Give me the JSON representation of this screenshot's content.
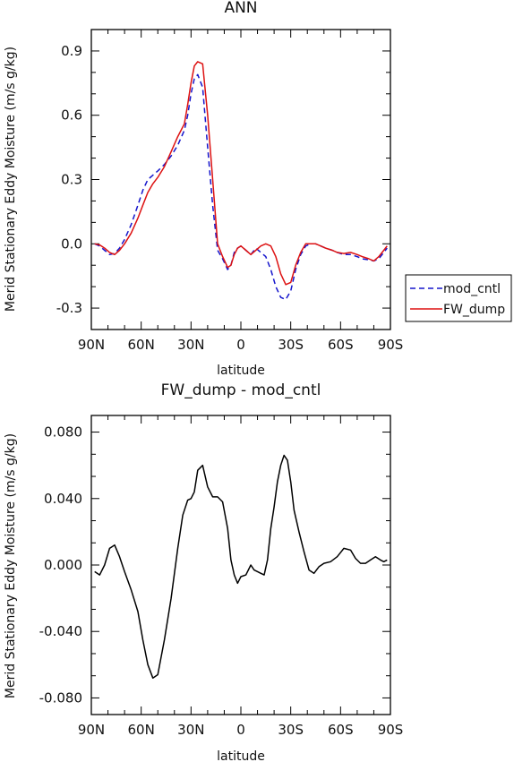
{
  "chart_data": [
    {
      "type": "line",
      "title": "ANN",
      "xlabel": "latitude",
      "ylabel": "Merid Stationary Eddy Moisture (m/s g/kg)",
      "xlim": [
        90,
        -90
      ],
      "ylim": [
        -0.4,
        1.0
      ],
      "xticks": [
        90,
        60,
        30,
        0,
        -30,
        -60,
        -90
      ],
      "xtick_labels": [
        "90N",
        "60N",
        "30N",
        "0",
        "30S",
        "60S",
        "90S"
      ],
      "yticks": [
        -0.3,
        0.0,
        0.3,
        0.6,
        0.9
      ],
      "ytick_labels": [
        "-0.3",
        "0.0",
        "0.3",
        "0.6",
        "0.9"
      ],
      "legend_position": "outside-right",
      "series": [
        {
          "name": "mod_cntl",
          "color": "#1515cc",
          "dash": "dashed",
          "x": [
            88,
            85,
            82,
            79,
            76,
            73,
            70,
            66,
            62,
            59,
            56,
            53,
            50,
            46,
            42,
            38,
            34,
            32,
            30,
            28,
            26,
            23,
            20,
            17,
            14,
            11,
            8,
            6,
            4,
            2,
            0,
            -3,
            -6,
            -9,
            -12,
            -15,
            -18,
            -21,
            -24,
            -27,
            -30,
            -33,
            -36,
            -39,
            -42,
            -45,
            -48,
            -51,
            -55,
            -58,
            -62,
            -66,
            -70,
            -73,
            -77,
            -80,
            -83,
            -86,
            -88
          ],
          "y": [
            0.0,
            -0.01,
            -0.03,
            -0.05,
            -0.045,
            -0.02,
            0.02,
            0.09,
            0.18,
            0.25,
            0.3,
            0.32,
            0.34,
            0.37,
            0.41,
            0.46,
            0.53,
            0.6,
            0.7,
            0.77,
            0.79,
            0.73,
            0.45,
            0.18,
            -0.03,
            -0.07,
            -0.12,
            -0.1,
            -0.04,
            -0.02,
            -0.01,
            -0.03,
            -0.05,
            -0.02,
            -0.04,
            -0.06,
            -0.12,
            -0.2,
            -0.25,
            -0.26,
            -0.22,
            -0.12,
            -0.05,
            -0.01,
            0.0,
            0.0,
            -0.01,
            -0.02,
            -0.03,
            -0.04,
            -0.05,
            -0.05,
            -0.06,
            -0.07,
            -0.075,
            -0.08,
            -0.07,
            -0.04,
            -0.02
          ]
        },
        {
          "name": "FW_dump",
          "color": "#dd1111",
          "dash": "solid",
          "x": [
            88,
            85,
            82,
            79,
            76,
            73,
            70,
            66,
            62,
            59,
            56,
            53,
            50,
            46,
            42,
            38,
            34,
            32,
            30,
            28,
            26,
            23,
            20,
            17,
            14,
            11,
            8,
            6,
            4,
            2,
            0,
            -3,
            -6,
            -9,
            -12,
            -15,
            -18,
            -21,
            -24,
            -27,
            -30,
            -33,
            -36,
            -39,
            -42,
            -45,
            -48,
            -51,
            -55,
            -58,
            -62,
            -66,
            -70,
            -73,
            -77,
            -80,
            -83,
            -86,
            -88
          ],
          "y": [
            0.0,
            -0.005,
            -0.02,
            -0.04,
            -0.05,
            -0.03,
            0.0,
            0.05,
            0.12,
            0.18,
            0.24,
            0.28,
            0.31,
            0.36,
            0.43,
            0.5,
            0.56,
            0.65,
            0.75,
            0.83,
            0.85,
            0.84,
            0.6,
            0.3,
            0.0,
            -0.06,
            -0.11,
            -0.1,
            -0.05,
            -0.02,
            -0.01,
            -0.03,
            -0.05,
            -0.03,
            -0.01,
            0.0,
            -0.01,
            -0.06,
            -0.14,
            -0.19,
            -0.18,
            -0.1,
            -0.04,
            0.0,
            0.0,
            0.0,
            -0.01,
            -0.02,
            -0.03,
            -0.04,
            -0.045,
            -0.04,
            -0.05,
            -0.06,
            -0.07,
            -0.08,
            -0.06,
            -0.03,
            -0.01
          ]
        }
      ]
    },
    {
      "type": "line",
      "title": "FW_dump - mod_cntl",
      "xlabel": "latitude",
      "ylabel": "Merid Stationary Eddy Moisture (m/s g/kg)",
      "xlim": [
        90,
        -90
      ],
      "ylim": [
        -0.09,
        0.09
      ],
      "xticks": [
        90,
        60,
        30,
        0,
        -30,
        -60,
        -90
      ],
      "xtick_labels": [
        "90N",
        "60N",
        "30N",
        "0",
        "30S",
        "60S",
        "90S"
      ],
      "yticks": [
        -0.08,
        -0.04,
        0.0,
        0.04,
        0.08
      ],
      "ytick_labels": [
        "-0.080",
        "-0.040",
        "0.000",
        "0.040",
        "0.080"
      ],
      "series": [
        {
          "color": "#000000",
          "dash": "solid",
          "x": [
            88,
            85,
            82,
            79,
            76,
            73,
            70,
            66,
            62,
            59,
            56,
            53,
            50,
            46,
            42,
            38,
            35,
            32,
            30,
            28,
            26,
            23,
            20,
            17,
            14,
            11,
            8,
            6,
            4,
            2,
            0,
            -3,
            -6,
            -8,
            -10,
            -12,
            -14,
            -16,
            -18,
            -20,
            -22,
            -24,
            -26,
            -28,
            -30,
            -32,
            -35,
            -38,
            -41,
            -44,
            -47,
            -50,
            -54,
            -58,
            -62,
            -66,
            -69,
            -72,
            -75,
            -78,
            -81,
            -84,
            -86,
            -88
          ],
          "y": [
            -0.004,
            -0.006,
            0.0,
            0.01,
            0.012,
            0.005,
            -0.004,
            -0.015,
            -0.028,
            -0.045,
            -0.06,
            -0.068,
            -0.066,
            -0.045,
            -0.02,
            0.01,
            0.03,
            0.039,
            0.04,
            0.044,
            0.057,
            0.06,
            0.047,
            0.041,
            0.041,
            0.038,
            0.022,
            0.003,
            -0.006,
            -0.011,
            -0.007,
            -0.006,
            0.0,
            -0.003,
            -0.004,
            -0.005,
            -0.006,
            0.003,
            0.022,
            0.035,
            0.05,
            0.06,
            0.066,
            0.063,
            0.05,
            0.033,
            0.02,
            0.008,
            -0.003,
            -0.005,
            -0.001,
            0.001,
            0.002,
            0.005,
            0.01,
            0.009,
            0.004,
            0.001,
            0.001,
            0.003,
            0.005,
            0.003,
            0.002,
            0.003
          ]
        }
      ]
    }
  ]
}
